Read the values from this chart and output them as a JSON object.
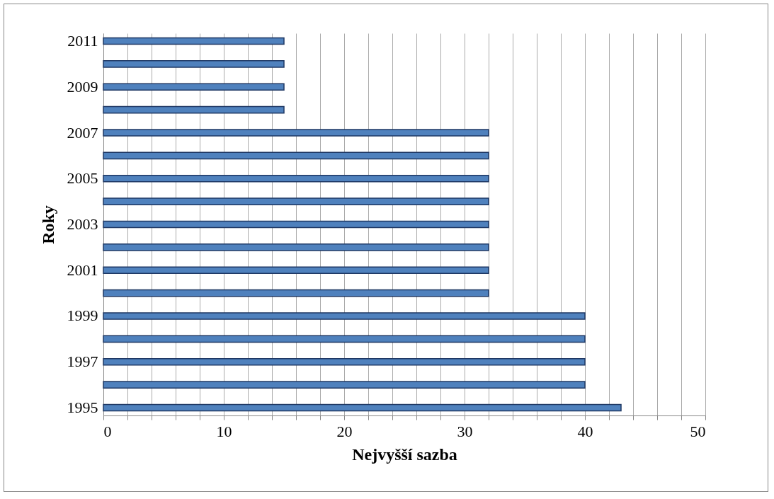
{
  "chart_data": {
    "type": "bar",
    "orientation": "horizontal",
    "xlabel": "Nejvyšší sazba",
    "ylabel": "Roky",
    "categories": [
      "2011",
      null,
      "2009",
      null,
      "2007",
      null,
      "2005",
      null,
      "2003",
      null,
      "2001",
      null,
      "1999",
      null,
      "1997",
      null,
      "1995"
    ],
    "values": [
      15,
      15,
      15,
      15,
      32,
      32,
      32,
      32,
      32,
      32,
      32,
      32,
      40,
      40,
      40,
      40,
      43
    ],
    "color": "#4f81bd",
    "xlim": [
      0,
      50
    ],
    "xticks": [
      0,
      {
        "value": 2,
        "label": null
      },
      {
        "value": 4,
        "label": null
      },
      {
        "value": 6,
        "label": null
      },
      {
        "value": 8,
        "label": null
      },
      10,
      {
        "value": 12,
        "label": null
      },
      {
        "value": 14,
        "label": null
      },
      {
        "value": 16,
        "label": null
      },
      {
        "value": 18,
        "label": null
      },
      20,
      {
        "value": 22,
        "label": null
      },
      {
        "value": 24,
        "label": null
      },
      {
        "value": 26,
        "label": null
      },
      {
        "value": 28,
        "label": null
      },
      30,
      {
        "value": 32,
        "label": null
      },
      {
        "value": 34,
        "label": null
      },
      {
        "value": 36,
        "label": null
      },
      {
        "value": 38,
        "label": null
      },
      40,
      {
        "value": 42,
        "label": null
      },
      {
        "value": 44,
        "label": null
      },
      {
        "value": 46,
        "label": null
      },
      {
        "value": 48,
        "label": null
      },
      50
    ],
    "grid": "x"
  }
}
